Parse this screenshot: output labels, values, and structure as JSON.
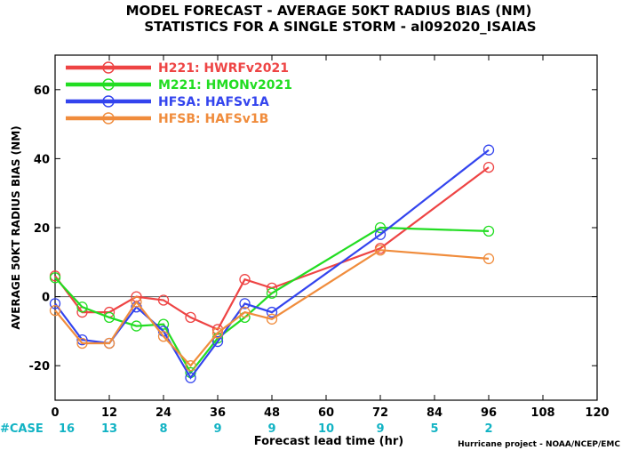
{
  "chart_data": {
    "type": "line",
    "title": "MODEL FORECAST - AVERAGE 50KT RADIUS BIAS (NM)",
    "subtitle": "STATISTICS FOR A SINGLE STORM - al092020_ISAIAS",
    "xlabel": "Forecast lead time (hr)",
    "ylabel": "AVERAGE 50KT RADIUS BIAS (NM)",
    "xlim": [
      0,
      120
    ],
    "ylim": [
      -30,
      70
    ],
    "xticks": [
      0,
      12,
      24,
      36,
      48,
      60,
      72,
      84,
      96,
      108,
      120
    ],
    "yticks": [
      -20,
      0,
      20,
      40,
      60
    ],
    "zero_line": true,
    "legend_position": "top-left",
    "series": [
      {
        "name": "H221: HWRFv2021",
        "color": "#ee4444",
        "x": [
          0,
          6,
          12,
          18,
          24,
          30,
          36,
          42,
          48,
          72,
          96
        ],
        "y": [
          6,
          -4.5,
          -4.5,
          0,
          -1,
          -6,
          -9.5,
          5,
          2.5,
          14,
          37.5
        ]
      },
      {
        "name": "M221: HMONv2021",
        "color": "#22dd22",
        "x": [
          0,
          6,
          12,
          18,
          24,
          30,
          36,
          42,
          48,
          72,
          96
        ],
        "y": [
          5.5,
          -3,
          -6,
          -8.5,
          -8,
          -22,
          -12,
          -6,
          1,
          20,
          19
        ]
      },
      {
        "name": "HFSA: HAFSv1A",
        "color": "#3344ee",
        "x": [
          0,
          6,
          12,
          18,
          24,
          30,
          36,
          42,
          48,
          72,
          96
        ],
        "y": [
          -2,
          -12.5,
          -13.5,
          -3,
          -10,
          -23.5,
          -13,
          -2,
          -4.5,
          18,
          42.5
        ]
      },
      {
        "name": "HFSB: HAFSv1B",
        "color": "#f08c3c",
        "x": [
          0,
          6,
          12,
          18,
          24,
          30,
          36,
          42,
          48,
          72,
          96
        ],
        "y": [
          -4,
          -13.5,
          -13.5,
          -1.5,
          -11.5,
          -20,
          -10.5,
          -4.5,
          -6.5,
          13.5,
          11
        ]
      }
    ],
    "case_counts": {
      "label": "#CASE",
      "x": [
        0,
        12,
        24,
        36,
        48,
        60,
        72,
        84,
        96
      ],
      "counts": [
        "16",
        "13",
        "8",
        "9",
        "9",
        "10",
        "9",
        "5",
        "2"
      ]
    },
    "credit": "Hurricane project - NOAA/NCEP/EMC"
  }
}
